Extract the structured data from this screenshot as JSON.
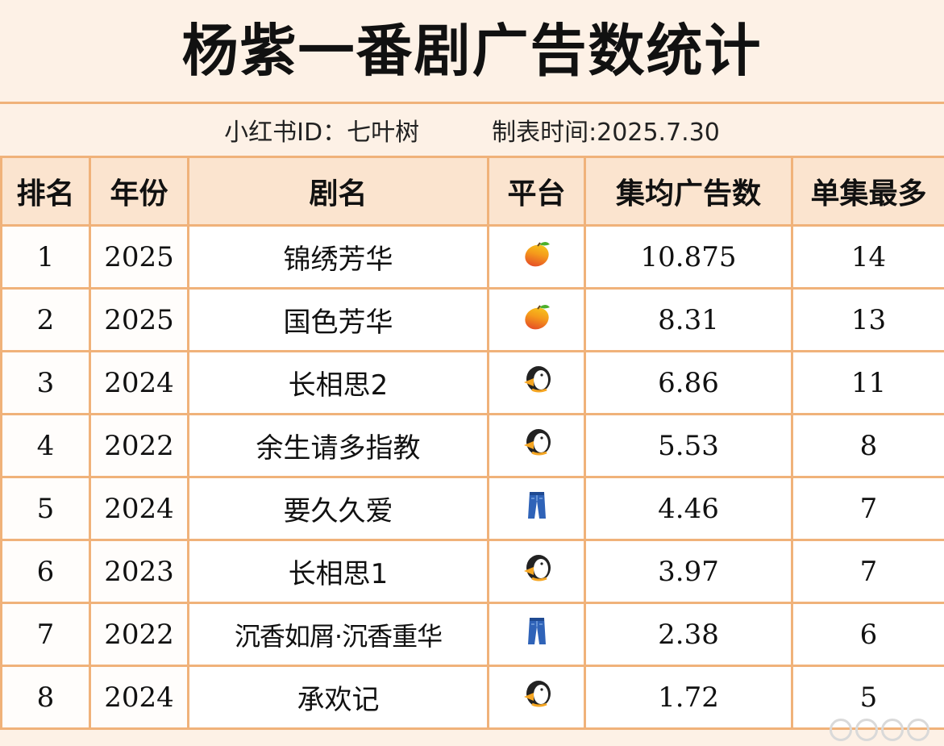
{
  "title": "杨紫一番剧广告数统计",
  "subtitle": {
    "author": "小红书ID：七叶树",
    "date": "制表时间:2025.7.30"
  },
  "table": {
    "headers": [
      "排名",
      "年份",
      "剧名",
      "平台",
      "集均广告数",
      "单集最多"
    ],
    "rows": [
      {
        "rank": "1",
        "year": "2025",
        "drama": "锦绣芳华",
        "platform": "mango-icon",
        "avg": "10.875",
        "max": "14"
      },
      {
        "rank": "2",
        "year": "2025",
        "drama": "国色芳华",
        "platform": "mango-icon",
        "avg": "8.31",
        "max": "13"
      },
      {
        "rank": "3",
        "year": "2024",
        "drama": "长相思2",
        "platform": "penguin-icon",
        "avg": "6.86",
        "max": "11"
      },
      {
        "rank": "4",
        "year": "2022",
        "drama": "余生请多指教",
        "platform": "penguin-icon",
        "avg": "5.53",
        "max": "8"
      },
      {
        "rank": "5",
        "year": "2024",
        "drama": "要久久爱",
        "platform": "jeans-icon",
        "avg": "4.46",
        "max": "7"
      },
      {
        "rank": "6",
        "year": "2023",
        "drama": "长相思1",
        "platform": "penguin-icon",
        "avg": "3.97",
        "max": "7"
      },
      {
        "rank": "7",
        "year": "2022",
        "drama": "沉香如屑·沉香重华",
        "platform": "jeans-icon",
        "avg": "2.38",
        "max": "6"
      },
      {
        "rank": "8",
        "year": "2024",
        "drama": "承欢记",
        "platform": "penguin-icon",
        "avg": "1.72",
        "max": "5"
      }
    ]
  }
}
